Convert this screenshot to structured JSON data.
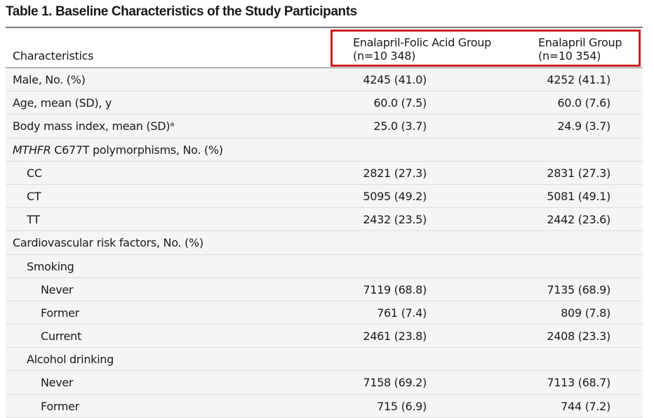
{
  "title": "Table 1. Baseline Characteristics of the Study Participants",
  "header": {
    "characteristics": "Characteristics",
    "col1_line1": "Enalapril-Folic Acid Group",
    "col1_line2": "(n=10 348)",
    "col2_line1": "Enalapril Group",
    "col2_line2": "(n=10 354)"
  },
  "rows": [
    {
      "label": "Male, No. (%)",
      "v1": "4245 (41.0)",
      "v2": "4252 (41.1)"
    },
    {
      "label": "Age, mean (SD), y",
      "v1": "60.0 (7.5)",
      "v2": "60.0 (7.6)"
    },
    {
      "label": "Body mass index, mean (SD)ᵃ",
      "v1": "25.0 (3.7)",
      "v2": "24.9 (3.7)"
    },
    {
      "label_italic": "MTHFR",
      "label": " C677T polymorphisms, No. (%)",
      "v1": "",
      "v2": ""
    },
    {
      "label": "CC",
      "v1": "2821 (27.3)",
      "v2": "2831 (27.3)"
    },
    {
      "label": "CT",
      "v1": "5095 (49.2)",
      "v2": "5081 (49.1)"
    },
    {
      "label": "TT",
      "v1": "2432 (23.5)",
      "v2": "2442 (23.6)"
    },
    {
      "label": "Cardiovascular risk factors, No. (%)",
      "v1": "",
      "v2": ""
    },
    {
      "label": "Smoking",
      "v1": "",
      "v2": ""
    },
    {
      "label": "Never",
      "v1": "7119 (68.8)",
      "v2": "7135 (68.9)"
    },
    {
      "label": "Former",
      "v1": "761 (7.4)",
      "v2": "809 (7.8)"
    },
    {
      "label": "Current",
      "v1": "2461 (23.8)",
      "v2": "2408 (23.3)"
    },
    {
      "label": "Alcohol drinking",
      "v1": "",
      "v2": ""
    },
    {
      "label": "Never",
      "v1": "7158 (69.2)",
      "v2": "7113 (68.7)"
    },
    {
      "label": "Former",
      "v1": "715 (6.9)",
      "v2": "744 (7.2)"
    }
  ]
}
